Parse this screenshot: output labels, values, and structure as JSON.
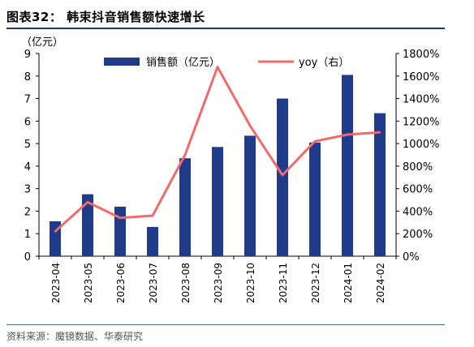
{
  "title": "图表32：  韩束抖音销售额快速增长",
  "source": "资料来源：魔镜数据、华泰研究",
  "chart_data": {
    "type": "bar",
    "categories": [
      "2023-04",
      "2023-05",
      "2023-06",
      "2023-07",
      "2023-08",
      "2023-09",
      "2023-10",
      "2023-11",
      "2023-12",
      "2024-01",
      "2024-02"
    ],
    "series": [
      {
        "name": "销售额（亿元）",
        "type": "bar",
        "axis": "left",
        "color": "#1f3b8a",
        "values": [
          1.55,
          2.75,
          2.2,
          1.3,
          4.35,
          4.85,
          5.35,
          7.0,
          5.05,
          8.05,
          6.35
        ]
      },
      {
        "name": "yoy（右）",
        "type": "line",
        "axis": "right",
        "color": "#ef6b6b",
        "values": [
          220,
          480,
          340,
          360,
          900,
          1680,
          1160,
          720,
          1020,
          1080,
          1100
        ]
      }
    ],
    "left_axis": {
      "unit_label": "（亿元）",
      "ylim": [
        0,
        9
      ],
      "ticks": [
        "0",
        "1",
        "2",
        "3",
        "4",
        "5",
        "6",
        "7",
        "8",
        "9"
      ]
    },
    "right_axis": {
      "ylim": [
        0,
        1800
      ],
      "ticks": [
        "0%",
        "200%",
        "400%",
        "600%",
        "800%",
        "1000%",
        "1200%",
        "1400%",
        "1600%",
        "1800%"
      ]
    },
    "legend_position": "top",
    "grid": false
  }
}
